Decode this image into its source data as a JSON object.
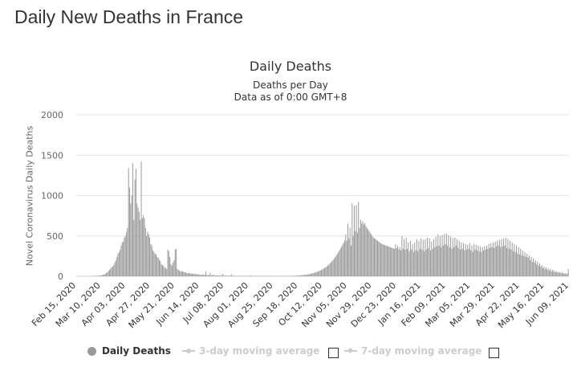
{
  "page": {
    "heading": "Daily New Deaths in France"
  },
  "chart_data": {
    "type": "bar",
    "title": "Daily Deaths",
    "subtitles": [
      "Deaths per Day",
      "Data as of 0:00 GMT+8"
    ],
    "xlabel": "",
    "ylabel": "Novel Coronavirus Daily Deaths",
    "ylim": [
      0,
      2000
    ],
    "yticks": [
      0,
      500,
      1000,
      1500,
      2000
    ],
    "grid": true,
    "start_date": "Feb 15, 2020",
    "end_date": "Jun 09, 2021",
    "xtick_labels": [
      "Feb 15, 2020",
      "Mar 10, 2020",
      "Apr 03, 2020",
      "Apr 27, 2020",
      "May 21, 2020",
      "Jun 14, 2020",
      "Jul 08, 2020",
      "Aug 01, 2020",
      "Aug 25, 2020",
      "Sep 18, 2020",
      "Oct 12, 2020",
      "Nov 05, 2020",
      "Nov 29, 2020",
      "Dec 23, 2020",
      "Jan 16, 2021",
      "Feb 09, 2021",
      "Mar 05, 2021",
      "Mar 29, 2021",
      "Apr 22, 2021",
      "May 16, 2021",
      "Jun 09, 2021"
    ],
    "series": [
      {
        "name": "Daily Deaths",
        "color": "#9a9a9a",
        "values": [
          0,
          0,
          0,
          0,
          0,
          0,
          0,
          0,
          0,
          0,
          0,
          0,
          0,
          0,
          0,
          0,
          2,
          3,
          3,
          4,
          5,
          7,
          9,
          11,
          14,
          18,
          22,
          30,
          40,
          50,
          65,
          80,
          95,
          110,
          120,
          140,
          170,
          200,
          240,
          280,
          300,
          330,
          380,
          420,
          430,
          480,
          500,
          550,
          600,
          1340,
          1100,
          900,
          1000,
          1400,
          700,
          1200,
          1330,
          900,
          850,
          800,
          700,
          1420,
          720,
          760,
          720,
          600,
          500,
          550,
          520,
          480,
          400,
          380,
          320,
          300,
          280,
          270,
          240,
          230,
          200,
          190,
          150,
          140,
          130,
          110,
          100,
          90,
          330,
          310,
          240,
          150,
          130,
          170,
          200,
          330,
          340,
          90,
          80,
          70,
          60,
          65,
          60,
          55,
          50,
          45,
          40,
          40,
          35,
          38,
          35,
          30,
          32,
          30,
          28,
          25,
          28,
          22,
          20,
          18,
          20,
          18,
          20,
          15,
          60,
          15,
          14,
          13,
          40,
          12,
          12,
          25,
          11,
          10,
          10,
          10,
          9,
          9,
          8,
          8,
          30,
          8,
          7,
          7,
          7,
          6,
          6,
          6,
          25,
          6,
          6,
          5,
          5,
          5,
          5,
          5,
          5,
          5,
          5,
          5,
          5,
          5,
          4,
          4,
          4,
          4,
          10,
          4,
          4,
          4,
          4,
          4,
          4,
          4,
          4,
          4,
          4,
          4,
          4,
          4,
          4,
          3,
          3,
          3,
          3,
          3,
          3,
          3,
          3,
          3,
          3,
          3,
          3,
          3,
          3,
          3,
          3,
          3,
          3,
          4,
          4,
          4,
          4,
          5,
          5,
          5,
          6,
          6,
          6,
          7,
          8,
          9,
          10,
          11,
          12,
          14,
          15,
          17,
          19,
          21,
          23,
          25,
          28,
          31,
          34,
          38,
          42,
          46,
          50,
          55,
          60,
          66,
          72,
          79,
          86,
          94,
          103,
          112,
          122,
          133,
          145,
          158,
          172,
          187,
          203,
          220,
          238,
          257,
          277,
          298,
          320,
          343,
          367,
          392,
          418,
          445,
          520,
          440,
          650,
          470,
          600,
          380,
          900,
          500,
          870,
          560,
          880,
          540,
          920,
          600,
          700,
          650,
          680,
          640,
          660,
          620,
          600,
          580,
          560,
          540,
          520,
          500,
          480,
          470,
          460,
          450,
          440,
          430,
          420,
          410,
          400,
          395,
          390,
          385,
          380,
          375,
          370,
          365,
          360,
          355,
          350,
          345,
          340,
          400,
          350,
          380,
          330,
          360,
          320,
          500,
          340,
          460,
          330,
          480,
          340,
          420,
          310,
          440,
          330,
          400,
          300,
          420,
          320,
          460,
          310,
          440,
          340,
          470,
          330,
          450,
          310,
          460,
          330,
          480,
          350,
          470,
          320,
          430,
          340,
          460,
          360,
          490,
          370,
          520,
          380,
          500,
          360,
          510,
          380,
          520,
          400,
          530,
          380,
          510,
          360,
          490,
          340,
          470,
          360,
          480,
          380,
          460,
          350,
          440,
          330,
          420,
          340,
          410,
          320,
          400,
          330,
          390,
          340,
          410,
          320,
          380,
          300,
          400,
          330,
          390,
          320,
          380,
          310,
          370,
          300,
          360,
          320,
          370,
          330,
          380,
          340,
          400,
          350,
          410,
          360,
          420,
          350,
          430,
          370,
          440,
          380,
          450,
          360,
          460,
          370,
          470,
          380,
          480,
          350,
          460,
          340,
          440,
          330,
          420,
          310,
          400,
          300,
          380,
          280,
          360,
          270,
          340,
          260,
          320,
          250,
          300,
          240,
          280,
          230,
          260,
          200,
          240,
          180,
          220,
          170,
          200,
          150,
          180,
          130,
          160,
          120,
          140,
          100,
          120,
          90,
          110,
          80,
          100,
          70,
          90,
          60,
          80,
          55,
          70,
          50,
          60,
          45,
          55,
          40,
          50,
          35,
          45,
          30,
          40,
          25,
          35,
          90
        ]
      },
      {
        "name": "3-day moving average",
        "color": "#cccccc",
        "visible": false
      },
      {
        "name": "7-day moving average",
        "color": "#cccccc",
        "visible": false
      }
    ],
    "legend_position": "bottom-center"
  }
}
